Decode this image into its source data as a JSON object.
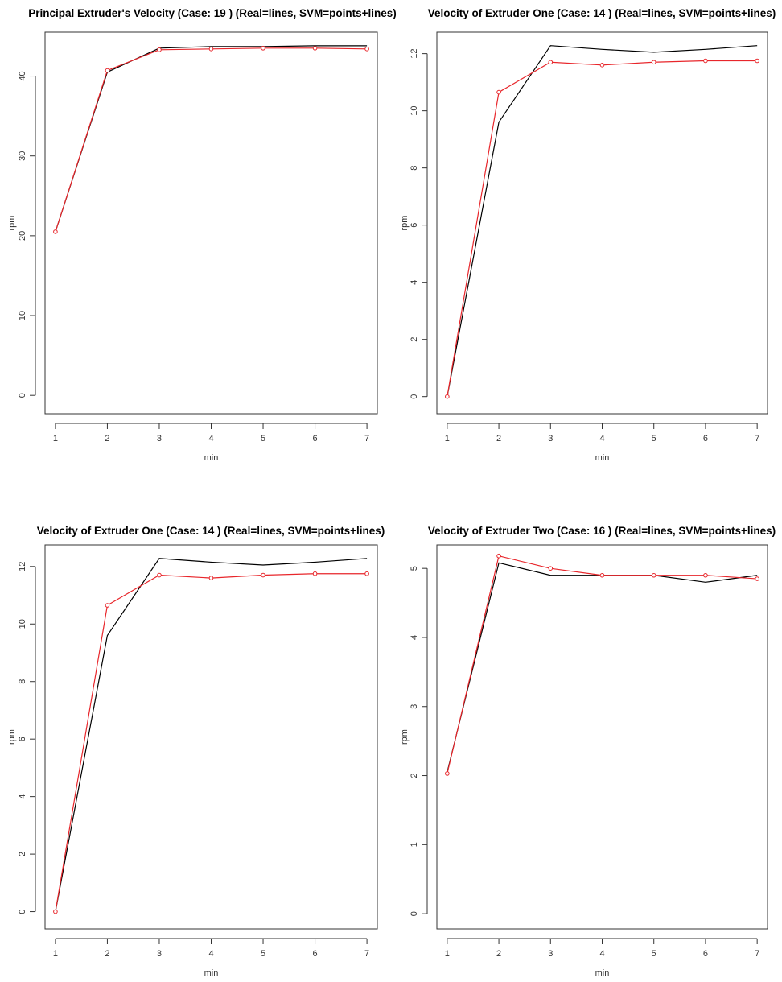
{
  "colors": {
    "real": "#000000",
    "svm": "#e8262b",
    "axis": "#333333"
  },
  "chart_data": [
    {
      "type": "line",
      "title": "Principal Extruder's Velocity (Case: 19 ) (Real=lines, SVM=points+lines)",
      "xlabel": "min",
      "ylabel": "rpm",
      "x": [
        1,
        2,
        3,
        4,
        5,
        6,
        7
      ],
      "xticks": [
        1,
        2,
        3,
        4,
        5,
        6,
        7
      ],
      "yticks": [
        0,
        10,
        20,
        30,
        40
      ],
      "xlim": [
        0.8,
        7.2
      ],
      "ylim": [
        -2.3,
        45.5
      ],
      "series": [
        {
          "style": "lines",
          "color": "#000000",
          "values": [
            20.5,
            40.5,
            43.5,
            43.7,
            43.7,
            43.8,
            43.8
          ]
        },
        {
          "style": "points+lines",
          "color": "#e8262b",
          "values": [
            20.5,
            40.7,
            43.3,
            43.4,
            43.5,
            43.5,
            43.4
          ]
        }
      ]
    },
    {
      "type": "line",
      "title": "Velocity of Extruder One (Case: 14 ) (Real=lines, SVM=points+lines)",
      "xlabel": "min",
      "ylabel": "rpm",
      "x": [
        1,
        2,
        3,
        4,
        5,
        6,
        7
      ],
      "xticks": [
        1,
        2,
        3,
        4,
        5,
        6,
        7
      ],
      "yticks": [
        0,
        2,
        4,
        6,
        8,
        10,
        12
      ],
      "xlim": [
        0.8,
        7.2
      ],
      "ylim": [
        -0.6,
        12.75
      ],
      "series": [
        {
          "style": "lines",
          "color": "#000000",
          "values": [
            0.0,
            9.6,
            12.28,
            12.15,
            12.05,
            12.15,
            12.28
          ]
        },
        {
          "style": "points+lines",
          "color": "#e8262b",
          "values": [
            0.0,
            10.65,
            11.7,
            11.6,
            11.7,
            11.75,
            11.75
          ]
        }
      ]
    },
    {
      "type": "line",
      "title": "Velocity of Extruder One (Case: 14 ) (Real=lines, SVM=points+lines)",
      "xlabel": "min",
      "ylabel": "rpm",
      "x": [
        1,
        2,
        3,
        4,
        5,
        6,
        7
      ],
      "xticks": [
        1,
        2,
        3,
        4,
        5,
        6,
        7
      ],
      "yticks": [
        0,
        2,
        4,
        6,
        8,
        10,
        12
      ],
      "xlim": [
        0.8,
        7.2
      ],
      "ylim": [
        -0.6,
        12.75
      ],
      "series": [
        {
          "style": "lines",
          "color": "#000000",
          "values": [
            0.0,
            9.6,
            12.28,
            12.15,
            12.05,
            12.15,
            12.28
          ]
        },
        {
          "style": "points+lines",
          "color": "#e8262b",
          "values": [
            0.0,
            10.65,
            11.7,
            11.6,
            11.7,
            11.75,
            11.75
          ]
        }
      ]
    },
    {
      "type": "line",
      "title": "Velocity of Extruder Two (Case: 16 ) (Real=lines, SVM=points+lines)",
      "xlabel": "min",
      "ylabel": "rpm",
      "x": [
        1,
        2,
        3,
        4,
        5,
        6,
        7
      ],
      "xticks": [
        1,
        2,
        3,
        4,
        5,
        6,
        7
      ],
      "yticks": [
        0,
        1,
        2,
        3,
        4,
        5
      ],
      "xlim": [
        0.8,
        7.2
      ],
      "ylim": [
        -0.22,
        5.34
      ],
      "series": [
        {
          "style": "lines",
          "color": "#000000",
          "values": [
            2.05,
            5.08,
            4.9,
            4.9,
            4.9,
            4.8,
            4.9
          ]
        },
        {
          "style": "points+lines",
          "color": "#e8262b",
          "values": [
            2.03,
            5.18,
            5.0,
            4.9,
            4.9,
            4.9,
            4.85
          ]
        }
      ]
    }
  ]
}
